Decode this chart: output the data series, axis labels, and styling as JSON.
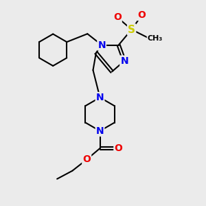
{
  "bg_color": "#ebebeb",
  "atom_colors": {
    "C": "#000000",
    "N": "#0000ee",
    "O": "#ee0000",
    "S": "#cccc00"
  },
  "bond_color": "#000000",
  "bond_width": 1.5,
  "dbl_sep": 0.07,
  "font_size_atom": 10,
  "font_size_small": 8.5
}
